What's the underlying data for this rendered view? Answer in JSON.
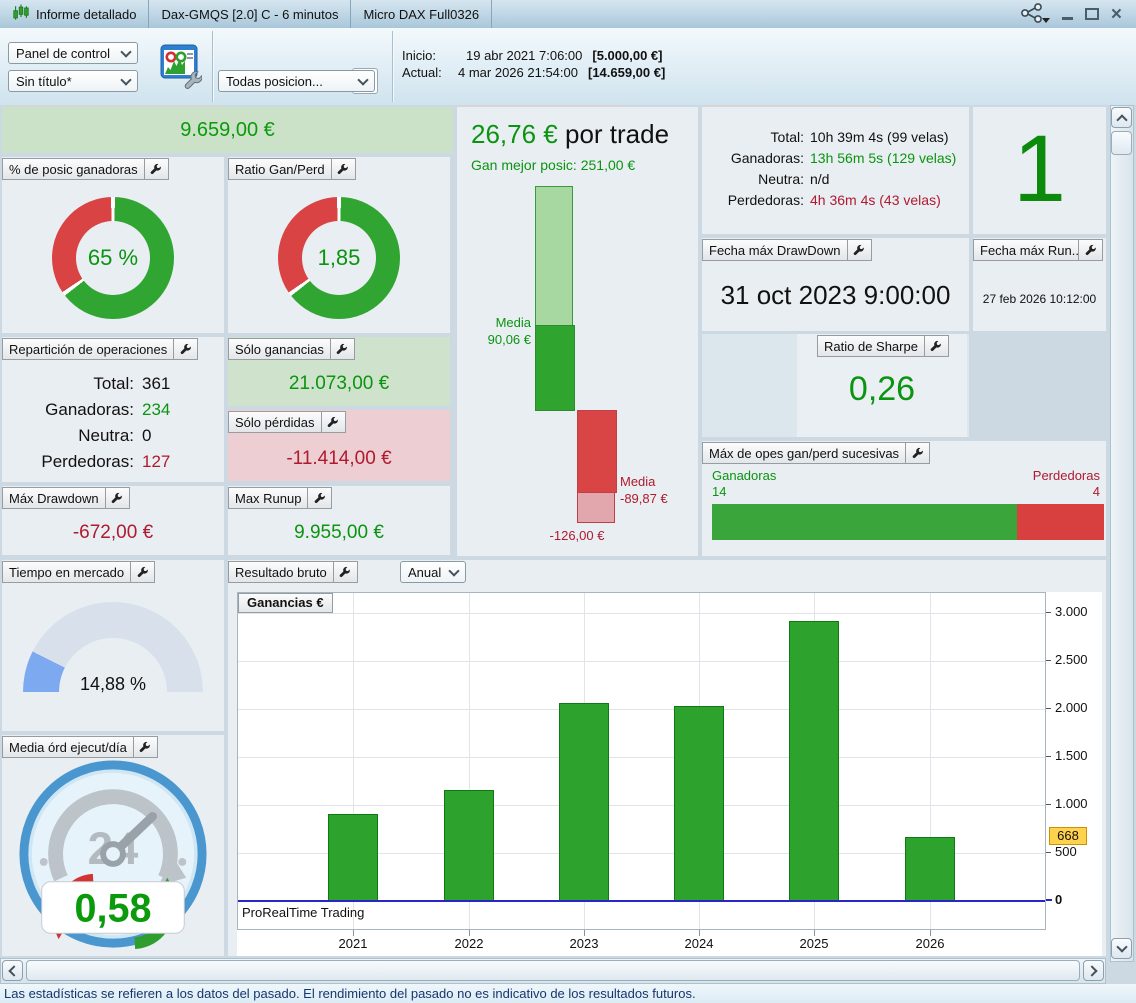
{
  "titlebar": {
    "tabs": [
      "Informe detallado",
      "Dax-GMQS [2.0] C - 6 minutos",
      "Micro DAX Full0326"
    ]
  },
  "toolbar": {
    "layout_select": "Panel de control",
    "template_select": "Sin título*",
    "strategy_name": "Dax-GMQS [2.0] C",
    "positions_select": "Todas posicion...",
    "inicio_label": "Inicio:",
    "inicio_value": "19 abr 2021 7:06:00",
    "inicio_amount": "[5.000,00 €]",
    "actual_label": "Actual:",
    "actual_value": "4 mar 2026 21:54:00",
    "actual_amount": "[14.659,00 €]"
  },
  "panels": {
    "net_result": {
      "value": "9.659,00 €"
    },
    "pct_ganadoras": {
      "title": "% de posic ganadoras",
      "value": "65 %",
      "pct": 65
    },
    "ratio_gan_perd": {
      "title": "Ratio Gan/Perd",
      "value": "1,85",
      "pct": 64.9
    },
    "reparticion": {
      "title": "Repartición de operaciones",
      "rows": [
        {
          "label": "Total:",
          "value": "361",
          "color": "black"
        },
        {
          "label": "Ganadoras:",
          "value": "234",
          "color": "green"
        },
        {
          "label": "Neutra:",
          "value": "0",
          "color": "black"
        },
        {
          "label": "Perdedoras:",
          "value": "127",
          "color": "red"
        }
      ]
    },
    "solo_ganancias": {
      "title": "Sólo ganancias",
      "value": "21.073,00 €"
    },
    "solo_perdidas": {
      "title": "Sólo pérdidas",
      "value": "-11.414,00 €"
    },
    "max_drawdown": {
      "title": "Máx Drawdown",
      "value": "-672,00 €"
    },
    "max_runup": {
      "title": "Max Runup",
      "value": "9.955,00 €"
    },
    "tiempo_mercado": {
      "title": "Tiempo en mercado",
      "value": "14,88 %",
      "pct": 14.88
    },
    "media_ordenes": {
      "title": "Media órd ejecut/día",
      "value": "0,58",
      "clock_label": "24"
    },
    "por_trade": {
      "value": "26,76 €",
      "suffix": "por trade",
      "best_label": "Gan mejor posic: 251,00 €",
      "media_gan_l1": "Media",
      "media_gan_l2": "90,06 €",
      "media_perd_l1": "Media",
      "media_perd_l2": "-89,87 €",
      "worst_label": "-126,00 €"
    },
    "tiempos": {
      "rows": [
        {
          "label": "Total:",
          "value": "10h 39m 4s (99 velas)",
          "color": "black"
        },
        {
          "label": "Ganadoras:",
          "value": "13h 56m 5s (129 velas)",
          "color": "green"
        },
        {
          "label": "Neutra:",
          "value": "n/d",
          "color": "black"
        },
        {
          "label": "Perdedoras:",
          "value": "4h 36m 4s (43 velas)",
          "color": "red"
        }
      ]
    },
    "big_counter": {
      "value": "1"
    },
    "fecha_drawdown": {
      "title": "Fecha máx DrawDown",
      "value": "31 oct 2023 9:00:00"
    },
    "fecha_runup": {
      "title": "Fecha máx Run...",
      "value": "27 feb 2026 10:12:00"
    },
    "sharpe": {
      "title": "Ratio de Sharpe",
      "value": "0,26"
    },
    "max_opes": {
      "title": "Máx de opes gan/perd sucesivas",
      "win_label": "Ganadoras",
      "win_value": "14",
      "loss_label": "Perdedoras",
      "loss_value": "4",
      "win_pct": 77.8
    },
    "resultado_bruto": {
      "title": "Resultado bruto",
      "period": "Anual"
    }
  },
  "chart_data": {
    "type": "bar",
    "title": "Resultado bruto (Anual)",
    "legend": "Ganancias €",
    "watermark": "ProRealTime Trading",
    "categories": [
      "2021",
      "2022",
      "2023",
      "2024",
      "2025",
      "2026"
    ],
    "values": [
      910,
      1160,
      2065,
      2035,
      2915,
      668
    ],
    "ylim": [
      0,
      3000
    ],
    "yticks": [
      {
        "v": 0,
        "label": "0",
        "bold": true
      },
      {
        "v": 500,
        "label": "500"
      },
      {
        "v": 1000,
        "label": "1.000"
      },
      {
        "v": 1500,
        "label": "1.500"
      },
      {
        "v": 2000,
        "label": "2.000"
      },
      {
        "v": 2500,
        "label": "2.500"
      },
      {
        "v": 3000,
        "label": "3.000"
      }
    ],
    "current_marker": {
      "v": 668,
      "label": "668"
    },
    "grid": true,
    "legend_position": "top-left",
    "bar_color": "#2da22d",
    "bar_border": "#0e7a12",
    "baseline_color": "#2727c8"
  },
  "statusbar": {
    "text": "Las estadísticas se refieren a los datos del pasado. El rendimiento del pasado no es indicativo de los resultados futuros."
  },
  "colors": {
    "green": "#0b9410",
    "red": "#b01a2e",
    "donut_green": "#31a531",
    "donut_red": "#d94343",
    "gauge_fill": "#7da9f0"
  }
}
